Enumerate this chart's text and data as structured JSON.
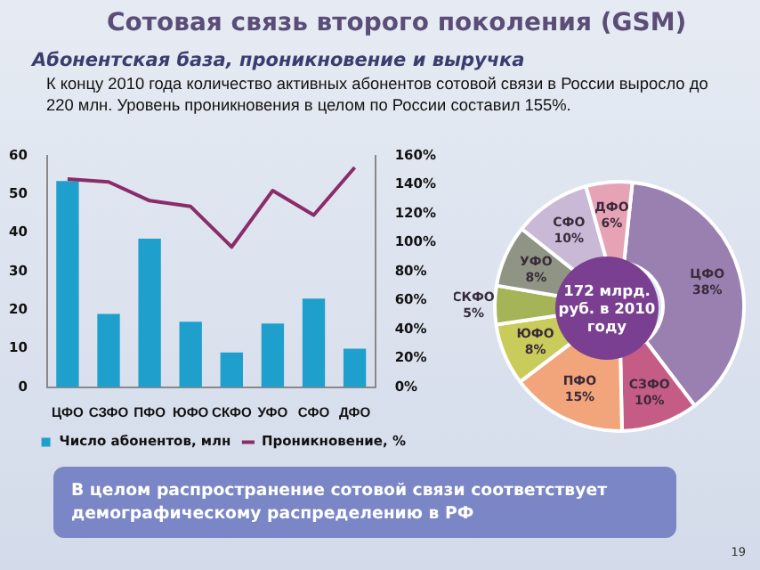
{
  "chart_data": [
    {
      "type": "bar",
      "title": "Сотовая связь второго поколения (GSM)",
      "subtitle": "Абонентская база, проникновение и выручка",
      "annotations": [
        "К концу 2010 года количество активных абонентов сотовой связи в России выросло до 220 млн. Уровень проникновения в целом по России составил 155%.",
        "В целом распространение сотовой связи соответствует демографическому распределению в РФ",
        "19"
      ],
      "categories": [
        "ЦФО",
        "СЗФО",
        "ПФО",
        "ЮФО",
        "СКФО",
        "УФО",
        "СФО",
        "ДФО"
      ],
      "series": [
        {
          "name": "Число абонентов, млн",
          "type": "bar",
          "color": "#1f9fcc",
          "values": [
            53.5,
            19,
            38.5,
            17,
            9,
            16.5,
            23,
            10
          ]
        },
        {
          "name": "Проникновение, %",
          "type": "line",
          "axis": "y2",
          "color": "#8b2c6a",
          "values": [
            144,
            142,
            129,
            125,
            97,
            136,
            119,
            152
          ]
        }
      ],
      "ylim": [
        0,
        60
      ],
      "yticks": [
        0,
        10,
        20,
        30,
        40,
        50,
        60
      ],
      "y2lim": [
        0,
        160
      ],
      "y2ticks": [
        {
          "value": 0,
          "label": "0%"
        },
        {
          "value": 20,
          "label": "20%"
        },
        {
          "value": 40,
          "label": "40%"
        },
        {
          "value": 60,
          "label": "60%"
        },
        {
          "value": 80,
          "label": "80%"
        },
        {
          "value": 100,
          "label": "100%"
        },
        {
          "value": 120,
          "label": "120%"
        },
        {
          "value": 140,
          "label": "140%"
        },
        {
          "value": 160,
          "label": "160%"
        }
      ],
      "legend": "bottom",
      "grid": false,
      "marker": "none"
    },
    {
      "type": "donut",
      "categories": [
        "ЦФО",
        "СЗФО",
        "ПФО",
        "ЮФО",
        "СКФО",
        "УФО",
        "СФО",
        "ДФО"
      ],
      "values": [
        38,
        10,
        15,
        8,
        5,
        8,
        10,
        6
      ],
      "colors": [
        "#9a80b0",
        "#c45c86",
        "#f2a47a",
        "#c9cb5a",
        "#a4b456",
        "#8f9485",
        "#c9b9d6",
        "#e7a3b6"
      ],
      "value_labels": [
        "38%",
        "10%",
        "15%",
        "8%",
        "5%",
        "8%",
        "10%",
        "6%"
      ],
      "annotations": [
        "172 млрд. руб. в 2010 году"
      ]
    }
  ]
}
